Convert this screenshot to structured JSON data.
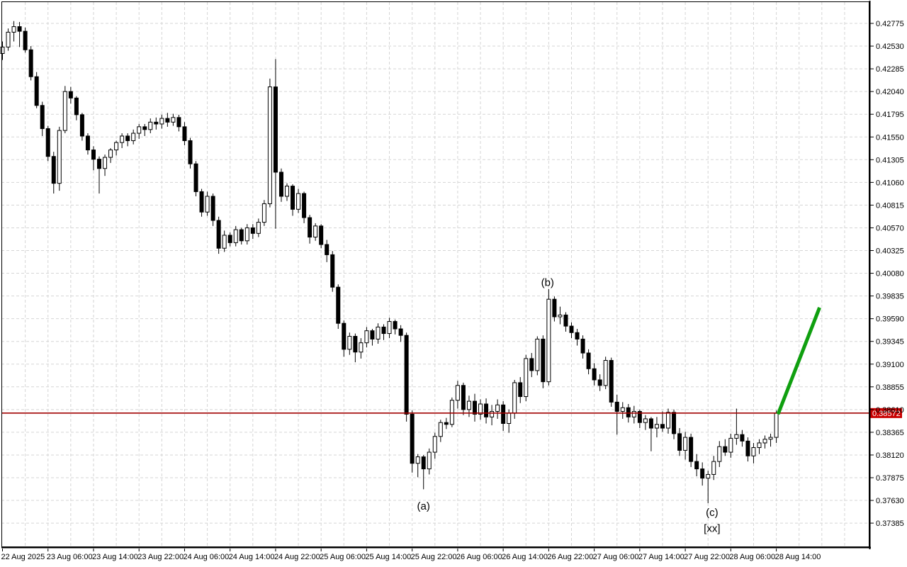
{
  "window": {
    "background": "#ffffff",
    "frame_color": "#000000"
  },
  "chart_data": {
    "type": "candlestick",
    "title": "",
    "grid": {
      "color": "#d5d5d5",
      "dash": "4 3",
      "vertical_every_bars": 4,
      "grid_on": true
    },
    "candle_style": {
      "up_fill": "#ffffff",
      "down_fill": "#000000",
      "outline": "#000000",
      "wick": "#000000"
    },
    "x_axis": {
      "labels": [
        "22 Aug 2025",
        "23 Aug 06:00",
        "23 Aug 14:00",
        "23 Aug 22:00",
        "24 Aug 06:00",
        "24 Aug 14:00",
        "24 Aug 22:00",
        "25 Aug 06:00",
        "25 Aug 14:00",
        "25 Aug 22:00",
        "26 Aug 06:00",
        "26 Aug 14:00",
        "26 Aug 22:00",
        "27 Aug 06:00",
        "27 Aug 14:00",
        "27 Aug 22:00",
        "28 Aug 06:00",
        "28 Aug 14:00"
      ],
      "label_indices": [
        0,
        8,
        16,
        24,
        32,
        40,
        48,
        56,
        64,
        72,
        80,
        88,
        96,
        104,
        112,
        120,
        128,
        136
      ],
      "bar_interval": "1 hour"
    },
    "y_axis": {
      "labels": [
        "0.42775",
        "0.42530",
        "0.42285",
        "0.42040",
        "0.41795",
        "0.41550",
        "0.41305",
        "0.41060",
        "0.40815",
        "0.40570",
        "0.40325",
        "0.40080",
        "0.39835",
        "0.39590",
        "0.39345",
        "0.39100",
        "0.38855",
        "0.38610",
        "0.38365",
        "0.38120",
        "0.37875",
        "0.37630",
        "0.37385"
      ],
      "max": 0.42775,
      "min": 0.37385,
      "step": 0.00245
    },
    "current_price": {
      "value": "0.38572",
      "price": 0.38572,
      "line_color": "#a00000",
      "box_color": "#c80000",
      "text_color": "#ffffff"
    },
    "annotations": [
      {
        "text": "(a)",
        "index": 74,
        "price": 0.3757,
        "color": "#0000ff"
      },
      {
        "text": "(b)",
        "index": 95.8,
        "price": 0.3998,
        "color": "#0000ff"
      },
      {
        "text": "(c)",
        "index": 124.7,
        "price": 0.375,
        "color": "#0000ff"
      },
      {
        "text": "[xx]",
        "index": 124.7,
        "price": 0.3733,
        "color": "#32cd32"
      }
    ],
    "trendline": {
      "from": {
        "index": 136.3,
        "price": 0.3856
      },
      "to": {
        "index": 143.6,
        "price": 0.3971
      },
      "color": "#0f9f0f",
      "width": 5
    },
    "candles": [
      [
        0.4245,
        0.4258,
        0.4238,
        0.4252
      ],
      [
        0.4252,
        0.4272,
        0.4248,
        0.4268
      ],
      [
        0.4268,
        0.428,
        0.4258,
        0.4274
      ],
      [
        0.4274,
        0.4279,
        0.4252,
        0.4269
      ],
      [
        0.4269,
        0.4273,
        0.4246,
        0.4249
      ],
      [
        0.4249,
        0.4253,
        0.4216,
        0.422
      ],
      [
        0.422,
        0.4225,
        0.4186,
        0.4189
      ],
      [
        0.4189,
        0.4193,
        0.4156,
        0.4164
      ],
      [
        0.4164,
        0.4167,
        0.4129,
        0.4134
      ],
      [
        0.4134,
        0.4139,
        0.4094,
        0.4105
      ],
      [
        0.4105,
        0.4166,
        0.4097,
        0.4162
      ],
      [
        0.4162,
        0.421,
        0.4159,
        0.4204
      ],
      [
        0.4204,
        0.4209,
        0.4191,
        0.4197
      ],
      [
        0.4197,
        0.4199,
        0.4173,
        0.4179
      ],
      [
        0.4179,
        0.4181,
        0.4151,
        0.4156
      ],
      [
        0.4156,
        0.4159,
        0.4136,
        0.4141
      ],
      [
        0.4141,
        0.4145,
        0.4119,
        0.4131
      ],
      [
        0.4131,
        0.4134,
        0.4094,
        0.4121
      ],
      [
        0.4121,
        0.4136,
        0.4113,
        0.4133
      ],
      [
        0.4133,
        0.4143,
        0.4127,
        0.4141
      ],
      [
        0.4141,
        0.4151,
        0.4135,
        0.4149
      ],
      [
        0.4149,
        0.4159,
        0.4143,
        0.4156
      ],
      [
        0.4156,
        0.4159,
        0.4145,
        0.4151
      ],
      [
        0.4151,
        0.4163,
        0.4147,
        0.4159
      ],
      [
        0.4159,
        0.4169,
        0.4153,
        0.4166
      ],
      [
        0.4166,
        0.4169,
        0.4156,
        0.4163
      ],
      [
        0.4163,
        0.4175,
        0.4159,
        0.4171
      ],
      [
        0.4171,
        0.4176,
        0.4163,
        0.4169
      ],
      [
        0.4169,
        0.4179,
        0.4164,
        0.4175
      ],
      [
        0.4175,
        0.4181,
        0.4166,
        0.4171
      ],
      [
        0.4171,
        0.418,
        0.4167,
        0.4176
      ],
      [
        0.4176,
        0.4179,
        0.4161,
        0.4166
      ],
      [
        0.4166,
        0.4171,
        0.4146,
        0.4151
      ],
      [
        0.4151,
        0.4154,
        0.4121,
        0.4126
      ],
      [
        0.4126,
        0.4129,
        0.4091,
        0.4096
      ],
      [
        0.4096,
        0.4099,
        0.4069,
        0.4074
      ],
      [
        0.4074,
        0.4096,
        0.407,
        0.4091
      ],
      [
        0.4091,
        0.4094,
        0.4059,
        0.4065
      ],
      [
        0.4065,
        0.4069,
        0.4029,
        0.4035
      ],
      [
        0.4035,
        0.4054,
        0.4031,
        0.4049
      ],
      [
        0.4049,
        0.4052,
        0.4037,
        0.4041
      ],
      [
        0.4041,
        0.4059,
        0.4037,
        0.4055
      ],
      [
        0.4055,
        0.4057,
        0.4039,
        0.4043
      ],
      [
        0.4043,
        0.4061,
        0.4039,
        0.4057
      ],
      [
        0.4057,
        0.4061,
        0.4045,
        0.4051
      ],
      [
        0.4051,
        0.4067,
        0.4047,
        0.4063
      ],
      [
        0.4063,
        0.4087,
        0.4059,
        0.4083
      ],
      [
        0.4083,
        0.4218,
        0.4079,
        0.4209
      ],
      [
        0.4209,
        0.4239,
        0.4056,
        0.4117
      ],
      [
        0.4117,
        0.4121,
        0.4085,
        0.4091
      ],
      [
        0.4091,
        0.4105,
        0.4086,
        0.4102
      ],
      [
        0.4102,
        0.4104,
        0.407,
        0.4077
      ],
      [
        0.4077,
        0.4099,
        0.4073,
        0.4094
      ],
      [
        0.4094,
        0.4096,
        0.4062,
        0.4068
      ],
      [
        0.4068,
        0.4071,
        0.404,
        0.4047
      ],
      [
        0.4047,
        0.4062,
        0.4043,
        0.4059
      ],
      [
        0.4059,
        0.4061,
        0.4035,
        0.4039
      ],
      [
        0.4039,
        0.4044,
        0.402,
        0.4028
      ],
      [
        0.4028,
        0.4032,
        0.3988,
        0.3993
      ],
      [
        0.3993,
        0.3996,
        0.3948,
        0.3954
      ],
      [
        0.3954,
        0.3957,
        0.3918,
        0.3926
      ],
      [
        0.3926,
        0.3944,
        0.392,
        0.394
      ],
      [
        0.394,
        0.3943,
        0.3912,
        0.3923
      ],
      [
        0.3923,
        0.3938,
        0.3916,
        0.3933
      ],
      [
        0.3933,
        0.395,
        0.3928,
        0.3946
      ],
      [
        0.3946,
        0.3948,
        0.393,
        0.3937
      ],
      [
        0.3937,
        0.3954,
        0.3932,
        0.395
      ],
      [
        0.395,
        0.3953,
        0.3936,
        0.3943
      ],
      [
        0.3943,
        0.396,
        0.3938,
        0.3956
      ],
      [
        0.3956,
        0.3958,
        0.3942,
        0.3948
      ],
      [
        0.3948,
        0.3952,
        0.3934,
        0.3941
      ],
      [
        0.3941,
        0.3944,
        0.3848,
        0.3856
      ],
      [
        0.3856,
        0.386,
        0.3793,
        0.3803
      ],
      [
        0.3803,
        0.3813,
        0.3788,
        0.381
      ],
      [
        0.381,
        0.3812,
        0.3775,
        0.3797
      ],
      [
        0.3797,
        0.3819,
        0.3791,
        0.3815
      ],
      [
        0.3815,
        0.3836,
        0.3808,
        0.3832
      ],
      [
        0.3832,
        0.385,
        0.3826,
        0.3847
      ],
      [
        0.3847,
        0.3852,
        0.384,
        0.3845
      ],
      [
        0.3845,
        0.3874,
        0.3842,
        0.3871
      ],
      [
        0.3871,
        0.3892,
        0.3862,
        0.3887
      ],
      [
        0.3887,
        0.389,
        0.3855,
        0.3861
      ],
      [
        0.3861,
        0.3876,
        0.3853,
        0.387
      ],
      [
        0.387,
        0.3878,
        0.3848,
        0.3856
      ],
      [
        0.3856,
        0.3872,
        0.385,
        0.3867
      ],
      [
        0.3867,
        0.3873,
        0.3846,
        0.3853
      ],
      [
        0.3853,
        0.3866,
        0.3844,
        0.3859
      ],
      [
        0.3859,
        0.3872,
        0.3851,
        0.3866
      ],
      [
        0.3866,
        0.387,
        0.3838,
        0.3846
      ],
      [
        0.3846,
        0.3861,
        0.3836,
        0.3857
      ],
      [
        0.3857,
        0.3893,
        0.3851,
        0.389
      ],
      [
        0.389,
        0.3896,
        0.3868,
        0.3875
      ],
      [
        0.3875,
        0.392,
        0.387,
        0.3916
      ],
      [
        0.3916,
        0.3922,
        0.3896,
        0.3903
      ],
      [
        0.3903,
        0.394,
        0.3898,
        0.3937
      ],
      [
        0.3937,
        0.3941,
        0.3884,
        0.3891
      ],
      [
        0.3891,
        0.3991,
        0.3887,
        0.398
      ],
      [
        0.398,
        0.3983,
        0.3956,
        0.3961
      ],
      [
        0.3961,
        0.3972,
        0.3953,
        0.3963
      ],
      [
        0.3963,
        0.3966,
        0.3945,
        0.3951
      ],
      [
        0.3951,
        0.3955,
        0.3938,
        0.3944
      ],
      [
        0.3944,
        0.3948,
        0.393,
        0.3937
      ],
      [
        0.3937,
        0.3941,
        0.3916,
        0.3922
      ],
      [
        0.3922,
        0.3926,
        0.3899,
        0.3905
      ],
      [
        0.3905,
        0.3911,
        0.3887,
        0.3893
      ],
      [
        0.3893,
        0.3899,
        0.3881,
        0.3887
      ],
      [
        0.3887,
        0.3918,
        0.3883,
        0.3914
      ],
      [
        0.3914,
        0.3917,
        0.3864,
        0.3869
      ],
      [
        0.3869,
        0.3877,
        0.3834,
        0.3859
      ],
      [
        0.3859,
        0.3869,
        0.3851,
        0.3863
      ],
      [
        0.3863,
        0.3867,
        0.3847,
        0.3853
      ],
      [
        0.3853,
        0.3865,
        0.3846,
        0.3859
      ],
      [
        0.3859,
        0.3861,
        0.3841,
        0.3847
      ],
      [
        0.3847,
        0.3855,
        0.3839,
        0.3851
      ],
      [
        0.3851,
        0.3853,
        0.3816,
        0.3841
      ],
      [
        0.3841,
        0.3853,
        0.3831,
        0.3845
      ],
      [
        0.3845,
        0.3859,
        0.3837,
        0.3841
      ],
      [
        0.3841,
        0.3862,
        0.3835,
        0.3858
      ],
      [
        0.3858,
        0.3861,
        0.3829,
        0.3835
      ],
      [
        0.3835,
        0.3841,
        0.3811,
        0.3817
      ],
      [
        0.3817,
        0.3837,
        0.3807,
        0.3831
      ],
      [
        0.3831,
        0.3835,
        0.3799,
        0.3805
      ],
      [
        0.3805,
        0.3813,
        0.3789,
        0.3797
      ],
      [
        0.3797,
        0.3804,
        0.3779,
        0.3787
      ],
      [
        0.3787,
        0.3795,
        0.376,
        0.3791
      ],
      [
        0.3791,
        0.3811,
        0.3785,
        0.3805
      ],
      [
        0.3805,
        0.3827,
        0.3799,
        0.3821
      ],
      [
        0.3821,
        0.3829,
        0.3811,
        0.3815
      ],
      [
        0.3815,
        0.3835,
        0.3809,
        0.383
      ],
      [
        0.383,
        0.3862,
        0.3823,
        0.3834
      ],
      [
        0.3834,
        0.3839,
        0.3821,
        0.3827
      ],
      [
        0.3827,
        0.3831,
        0.3805,
        0.3811
      ],
      [
        0.3811,
        0.3825,
        0.3803,
        0.382
      ],
      [
        0.382,
        0.3829,
        0.3813,
        0.3825
      ],
      [
        0.3825,
        0.3833,
        0.3819,
        0.3829
      ],
      [
        0.3829,
        0.3835,
        0.3821,
        0.3831
      ],
      [
        0.3831,
        0.386,
        0.3825,
        0.3857
      ]
    ]
  }
}
